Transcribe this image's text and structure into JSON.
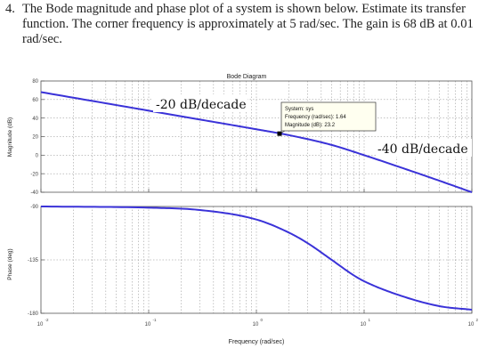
{
  "question": {
    "number": "4.",
    "text": "The Bode magnitude and phase plot of a system is shown below. Estimate its transfer function. The corner frequency is approximately at 5 rad/sec. The gain is 68 dB at 0.01 rad/sec."
  },
  "figure": {
    "title": "Bode Diagram",
    "xlabel": "Frequency (rad/sec)",
    "colors": {
      "curve": "#3a32d8",
      "grid": "#8a8a8a",
      "frame": "#555555",
      "annotation_bg": "#fffff0"
    }
  },
  "annotations": {
    "slope1": "-20 dB/decade",
    "slope2": "-40 dB/decade",
    "datatip": {
      "line1": "System: sys",
      "line2": "Frequency (rad/sec): 1.64",
      "line3": "Magnitude (dB): 23.2",
      "freq": 1.64,
      "mag": 23.2
    }
  },
  "chart_data": [
    {
      "type": "line",
      "ylabel": "Magnitude (dB)",
      "xscale": "log",
      "xlim": [
        0.01,
        100
      ],
      "ylim": [
        -40,
        80
      ],
      "x_ticks": [
        "10",
        "10",
        "10",
        "10",
        "10"
      ],
      "x_tick_exponents": [
        "-2",
        "-1",
        "0",
        "1",
        "2"
      ],
      "y_ticks": [
        80,
        60,
        40,
        20,
        0,
        -20,
        -40
      ],
      "grid": true,
      "series": [
        {
          "x": [
            0.01,
            0.1,
            0.3,
            1,
            2,
            5,
            10,
            20,
            50,
            100
          ],
          "y": [
            68,
            48,
            38.4,
            27.9,
            21.6,
            11,
            0,
            -11.7,
            -27.6,
            -40
          ]
        }
      ]
    },
    {
      "type": "line",
      "ylabel": "Phase (deg)",
      "xscale": "log",
      "xlim": [
        0.01,
        100
      ],
      "ylim": [
        -180,
        -90
      ],
      "y_ticks": [
        -90,
        -135,
        -180
      ],
      "grid": true,
      "series": [
        {
          "x": [
            0.01,
            0.1,
            0.3,
            1,
            2,
            3,
            5,
            8,
            10,
            20,
            50,
            100
          ],
          "y": [
            -90,
            -91,
            -93,
            -101,
            -112,
            -121,
            -135,
            -148,
            -153,
            -164,
            -174,
            -177
          ]
        }
      ]
    }
  ]
}
